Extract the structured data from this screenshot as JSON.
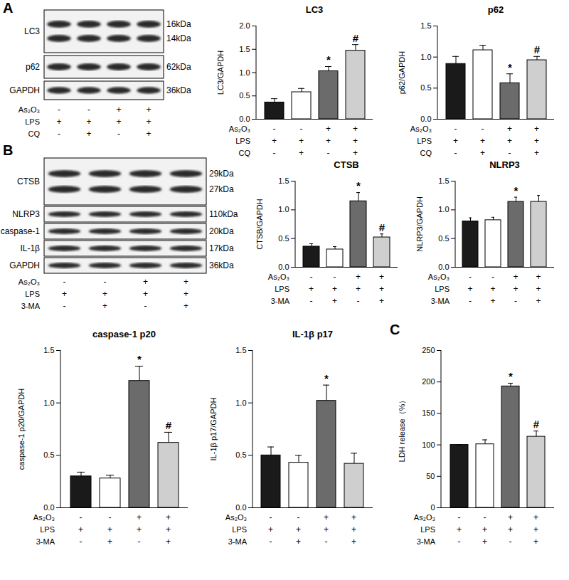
{
  "panel_letters": [
    "A",
    "B",
    "C"
  ],
  "blots": [
    {
      "rows": [
        {
          "label": "LC3",
          "kda": [
            "16kDa",
            "14kDa"
          ]
        },
        {
          "label": "p62",
          "kda": [
            "62kDa"
          ]
        },
        {
          "label": "GAPDH",
          "kda": [
            "36kDa"
          ]
        }
      ],
      "conditions": [
        {
          "label": "As₂O₃",
          "signs": [
            "-",
            "-",
            "+",
            "+"
          ]
        },
        {
          "label": "LPS",
          "signs": [
            "+",
            "+",
            "+",
            "+"
          ]
        },
        {
          "label": "CQ",
          "signs": [
            "-",
            "+",
            "-",
            "+"
          ]
        }
      ]
    },
    {
      "rows": [
        {
          "label": "CTSB",
          "kda": [
            "29kDa",
            "27kDa"
          ]
        },
        {
          "label": "NLRP3",
          "kda": [
            "110kDa"
          ]
        },
        {
          "label": "caspase-1",
          "kda": [
            "20kDa"
          ]
        },
        {
          "label": "IL-1β",
          "kda": [
            "17kDa"
          ]
        },
        {
          "label": "GAPDH",
          "kda": [
            "36kDa"
          ]
        }
      ],
      "conditions": [
        {
          "label": "As₂O₃",
          "signs": [
            "-",
            "-",
            "+",
            "+"
          ]
        },
        {
          "label": "LPS",
          "signs": [
            "+",
            "+",
            "+",
            "+"
          ]
        },
        {
          "label": "3-MA",
          "signs": [
            "-",
            "+",
            "-",
            "+"
          ]
        }
      ]
    }
  ],
  "chart_data": [
    {
      "type": "bar",
      "title": "LC3",
      "ylabel": "LC3/GAPDH",
      "categories": [
        null,
        null,
        null,
        null
      ],
      "values": [
        0.36,
        0.58,
        1.03,
        1.47
      ],
      "errors": [
        0.08,
        0.08,
        0.1,
        0.13
      ],
      "colors": [
        "#1a1a1a",
        "#ffffff",
        "#6b6b6b",
        "#cfcfcf"
      ],
      "significance": [
        null,
        null,
        "*",
        "#"
      ],
      "ylim": [
        0,
        2
      ],
      "yticks": [
        {
          "value": 0,
          "label": "0.0"
        },
        {
          "value": 0.5,
          "label": "0.5"
        },
        {
          "value": 1,
          "label": "1.0"
        },
        {
          "value": 1.5,
          "label": "1.5"
        },
        {
          "value": 2,
          "label": "2.0"
        }
      ],
      "conditions": [
        {
          "label": "As₂O₃",
          "signs": [
            "-",
            "-",
            "+",
            "+"
          ]
        },
        {
          "label": "LPS",
          "signs": [
            "+",
            "+",
            "+",
            "+"
          ]
        },
        {
          "label": "CQ",
          "signs": [
            "-",
            "+",
            "-",
            "+"
          ]
        }
      ]
    },
    {
      "type": "bar",
      "title": "p62",
      "ylabel": "p62/GAPDH",
      "categories": [
        null,
        null,
        null,
        null
      ],
      "values": [
        0.89,
        1.11,
        0.58,
        0.95
      ],
      "errors": [
        0.12,
        0.08,
        0.15,
        0.06
      ],
      "colors": [
        "#1a1a1a",
        "#ffffff",
        "#6b6b6b",
        "#cfcfcf"
      ],
      "significance": [
        null,
        null,
        "*",
        "#"
      ],
      "ylim": [
        0,
        1.5
      ],
      "yticks": [
        {
          "value": 0,
          "label": "0.0"
        },
        {
          "value": 0.5,
          "label": "0.5"
        },
        {
          "value": 1,
          "label": "1.0"
        },
        {
          "value": 1.5,
          "label": "1.5"
        }
      ],
      "conditions": [
        {
          "label": "As₂O₃",
          "signs": [
            "-",
            "-",
            "+",
            "+"
          ]
        },
        {
          "label": "LPS",
          "signs": [
            "+",
            "+",
            "+",
            "+"
          ]
        },
        {
          "label": "CQ",
          "signs": [
            "-",
            "+",
            "-",
            "+"
          ]
        }
      ]
    },
    {
      "type": "bar",
      "title": "CTSB",
      "ylabel": "CTSB/GAPDH",
      "categories": [
        null,
        null,
        null,
        null
      ],
      "values": [
        0.36,
        0.31,
        1.15,
        0.52
      ],
      "errors": [
        0.05,
        0.05,
        0.15,
        0.06
      ],
      "colors": [
        "#1a1a1a",
        "#ffffff",
        "#6b6b6b",
        "#cfcfcf"
      ],
      "significance": [
        null,
        null,
        "*",
        "#"
      ],
      "ylim": [
        0,
        1.5
      ],
      "yticks": [
        {
          "value": 0,
          "label": "0.0"
        },
        {
          "value": 0.5,
          "label": "0.5"
        },
        {
          "value": 1,
          "label": "1.0"
        },
        {
          "value": 1.5,
          "label": "1.5"
        }
      ],
      "conditions": [
        {
          "label": "As₂O₃",
          "signs": [
            "-",
            "-",
            "+",
            "+"
          ]
        },
        {
          "label": "LPS",
          "signs": [
            "+",
            "+",
            "+",
            "+"
          ]
        },
        {
          "label": "3-MA",
          "signs": [
            "-",
            "+",
            "-",
            "+"
          ]
        }
      ]
    },
    {
      "type": "bar",
      "title": "NLRP3",
      "ylabel": "NLRP3/GAPDH",
      "categories": [
        null,
        null,
        null,
        null
      ],
      "values": [
        0.8,
        0.82,
        1.14,
        1.14
      ],
      "errors": [
        0.06,
        0.05,
        0.08,
        0.11
      ],
      "colors": [
        "#1a1a1a",
        "#ffffff",
        "#6b6b6b",
        "#cfcfcf"
      ],
      "significance": [
        null,
        null,
        "*",
        null
      ],
      "ylim": [
        0,
        1.5
      ],
      "yticks": [
        {
          "value": 0,
          "label": "0.0"
        },
        {
          "value": 0.5,
          "label": "0.5"
        },
        {
          "value": 1,
          "label": "1.0"
        },
        {
          "value": 1.5,
          "label": "1.5"
        }
      ],
      "conditions": [
        {
          "label": "As₂O₃",
          "signs": [
            "-",
            "-",
            "+",
            "+"
          ]
        },
        {
          "label": "LPS",
          "signs": [
            "+",
            "+",
            "+",
            "+"
          ]
        },
        {
          "label": "3-MA",
          "signs": [
            "-",
            "+",
            "-",
            "+"
          ]
        }
      ]
    },
    {
      "type": "bar",
      "title": "caspase-1 p20",
      "ylabel": "caspase-1 p20/GAPDH",
      "categories": [
        null,
        null,
        null,
        null
      ],
      "values": [
        0.3,
        0.28,
        1.21,
        0.62
      ],
      "errors": [
        0.04,
        0.03,
        0.14,
        0.1
      ],
      "colors": [
        "#1a1a1a",
        "#ffffff",
        "#6b6b6b",
        "#cfcfcf"
      ],
      "significance": [
        null,
        null,
        "*",
        "#"
      ],
      "ylim": [
        0,
        1.5
      ],
      "yticks": [
        {
          "value": 0,
          "label": "0.0"
        },
        {
          "value": 0.5,
          "label": "0.5"
        },
        {
          "value": 1,
          "label": "1.0"
        },
        {
          "value": 1.5,
          "label": "1.5"
        }
      ],
      "conditions": [
        {
          "label": "As₂O₃",
          "signs": [
            "-",
            "-",
            "+",
            "+"
          ]
        },
        {
          "label": "LPS",
          "signs": [
            "+",
            "+",
            "+",
            "+"
          ]
        },
        {
          "label": "3-MA",
          "signs": [
            "-",
            "+",
            "-",
            "+"
          ]
        }
      ]
    },
    {
      "type": "bar",
      "title": "IL-1β p17",
      "ylabel": "IL-1β p17/GAPDH",
      "categories": [
        null,
        null,
        null,
        null
      ],
      "values": [
        0.5,
        0.43,
        1.02,
        0.42
      ],
      "errors": [
        0.08,
        0.07,
        0.15,
        0.1
      ],
      "colors": [
        "#1a1a1a",
        "#ffffff",
        "#6b6b6b",
        "#cfcfcf"
      ],
      "significance": [
        null,
        null,
        "*",
        null
      ],
      "ylim": [
        0,
        1.5
      ],
      "yticks": [
        {
          "value": 0,
          "label": "0.0"
        },
        {
          "value": 0.5,
          "label": "0.5"
        },
        {
          "value": 1,
          "label": "1.0"
        },
        {
          "value": 1.5,
          "label": "1.5"
        }
      ],
      "conditions": [
        {
          "label": "As₂O₃",
          "signs": [
            "-",
            "-",
            "+",
            "+"
          ]
        },
        {
          "label": "LPS",
          "signs": [
            "+",
            "+",
            "+",
            "+"
          ]
        },
        {
          "label": "3-MA",
          "signs": [
            "-",
            "+",
            "-",
            "+"
          ]
        }
      ]
    },
    {
      "type": "bar",
      "ylabel": "LDH release（%）",
      "categories": [
        null,
        null,
        null,
        null
      ],
      "values": [
        100,
        101,
        193,
        113
      ],
      "errors": [
        0,
        7,
        5,
        9
      ],
      "colors": [
        "#1a1a1a",
        "#ffffff",
        "#6b6b6b",
        "#cfcfcf"
      ],
      "significance": [
        null,
        null,
        "*",
        "#"
      ],
      "ylim": [
        0,
        250
      ],
      "yticks": [
        0,
        50,
        100,
        150,
        200,
        250
      ],
      "conditions": [
        {
          "label": "As₂O₃",
          "signs": [
            "-",
            "-",
            "+",
            "+"
          ]
        },
        {
          "label": "LPS",
          "signs": [
            "+",
            "+",
            "+",
            "+"
          ]
        },
        {
          "label": "3-MA",
          "signs": [
            "-",
            "+",
            "-",
            "+"
          ]
        }
      ]
    }
  ]
}
